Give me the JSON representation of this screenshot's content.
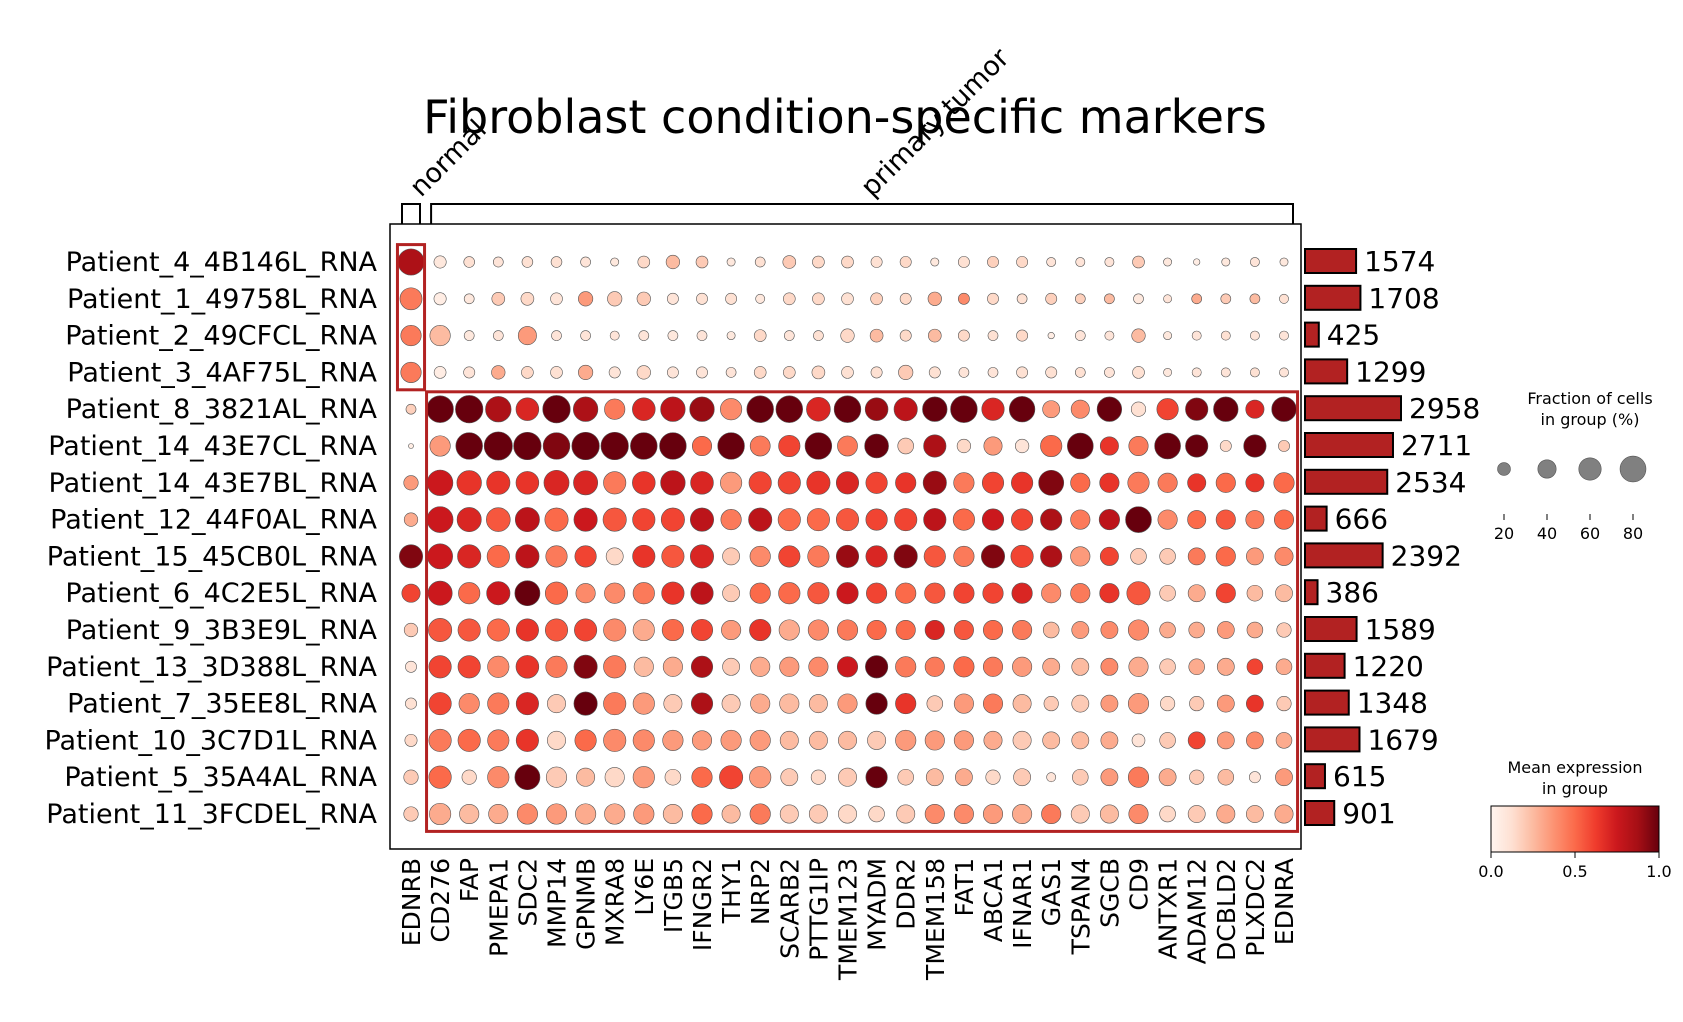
{
  "chart_data": {
    "type": "dotplot",
    "title": "Fibroblast condition-specific markers",
    "rows": [
      "Patient_4_4B146L_RNA",
      "Patient_1_49758L_RNA",
      "Patient_2_49CFCL_RNA",
      "Patient_3_4AF75L_RNA",
      "Patient_8_3821AL_RNA",
      "Patient_14_43E7CL_RNA",
      "Patient_14_43E7BL_RNA",
      "Patient_12_44F0AL_RNA",
      "Patient_15_45CB0L_RNA",
      "Patient_6_4C2E5L_RNA",
      "Patient_9_3B3E9L_RNA",
      "Patient_13_3D388L_RNA",
      "Patient_7_35EE8L_RNA",
      "Patient_10_3C7D1L_RNA",
      "Patient_5_35A4AL_RNA",
      "Patient_11_3FCDEL_RNA"
    ],
    "genes": [
      "EDNRB",
      "CD276",
      "FAP",
      "PMEPA1",
      "SDC2",
      "MMP14",
      "GPNMB",
      "MXRA8",
      "LY6E",
      "ITGB5",
      "IFNGR2",
      "THY1",
      "NRP2",
      "SCARB2",
      "PTTG1IP",
      "TMEM123",
      "MYADM",
      "DDR2",
      "TMEM158",
      "FAT1",
      "ABCA1",
      "IFNAR1",
      "GAS1",
      "TSPAN4",
      "SGCB",
      "CD9",
      "ANTXR1",
      "ADAM12",
      "DCBLD2",
      "PLXDC2",
      "EDNRA"
    ],
    "gene_groups": [
      {
        "label": "normal",
        "start": 0,
        "end": 0
      },
      {
        "label": "primary tumor",
        "start": 1,
        "end": 30
      }
    ],
    "highlight_boxes": [
      {
        "row_start": 0,
        "row_end": 3,
        "col_start": 0,
        "col_end": 0
      },
      {
        "row_start": 4,
        "row_end": 15,
        "col_start": 1,
        "col_end": 30
      }
    ],
    "fraction_pct": [
      [
        82,
        18,
        14,
        12,
        14,
        14,
        12,
        8,
        17,
        22,
        17,
        8,
        12,
        20,
        17,
        17,
        15,
        15,
        8,
        15,
        15,
        15,
        10,
        10,
        10,
        17,
        8,
        5,
        8,
        10,
        8
      ],
      [
        58,
        18,
        12,
        20,
        20,
        17,
        25,
        25,
        22,
        15,
        15,
        15,
        10,
        17,
        17,
        17,
        17,
        15,
        22,
        15,
        15,
        12,
        15,
        12,
        12,
        12,
        8,
        12,
        12,
        12,
        10
      ],
      [
        50,
        50,
        12,
        12,
        40,
        12,
        12,
        10,
        12,
        12,
        12,
        8,
        17,
        12,
        12,
        22,
        20,
        15,
        20,
        15,
        12,
        15,
        5,
        12,
        10,
        22,
        8,
        10,
        10,
        10,
        10
      ],
      [
        50,
        17,
        15,
        22,
        17,
        17,
        25,
        15,
        22,
        15,
        15,
        12,
        17,
        17,
        20,
        17,
        15,
        25,
        15,
        12,
        12,
        15,
        15,
        12,
        12,
        17,
        8,
        10,
        10,
        10,
        10
      ],
      [
        12,
        85,
        90,
        78,
        62,
        90,
        72,
        50,
        62,
        72,
        72,
        55,
        85,
        85,
        68,
        85,
        62,
        65,
        72,
        85,
        60,
        78,
        35,
        40,
        72,
        25,
        55,
        60,
        72,
        40,
        72
      ],
      [
        3,
        50,
        85,
        95,
        90,
        85,
        90,
        90,
        85,
        85,
        45,
        85,
        48,
        55,
        85,
        48,
        68,
        30,
        60,
        22,
        40,
        22,
        55,
        80,
        40,
        45,
        80,
        60,
        15,
        60,
        15
      ],
      [
        25,
        78,
        72,
        65,
        62,
        75,
        70,
        60,
        62,
        72,
        62,
        55,
        60,
        60,
        65,
        60,
        55,
        50,
        65,
        50,
        55,
        55,
        75,
        45,
        45,
        55,
        45,
        40,
        45,
        40,
        50
      ],
      [
        22,
        80,
        70,
        68,
        70,
        65,
        65,
        65,
        60,
        65,
        65,
        50,
        65,
        60,
        60,
        60,
        55,
        60,
        60,
        55,
        55,
        55,
        55,
        45,
        50,
        80,
        45,
        40,
        45,
        40,
        45
      ],
      [
        65,
        75,
        65,
        60,
        65,
        55,
        55,
        35,
        60,
        60,
        65,
        35,
        50,
        55,
        55,
        60,
        55,
        65,
        55,
        50,
        65,
        60,
        55,
        45,
        40,
        30,
        30,
        35,
        45,
        35,
        40
      ],
      [
        40,
        70,
        55,
        65,
        75,
        60,
        45,
        50,
        55,
        60,
        60,
        35,
        50,
        55,
        55,
        55,
        50,
        50,
        50,
        50,
        50,
        50,
        45,
        45,
        45,
        65,
        30,
        35,
        45,
        30,
        35
      ],
      [
        22,
        65,
        60,
        60,
        60,
        60,
        60,
        60,
        55,
        55,
        55,
        45,
        55,
        50,
        50,
        50,
        45,
        45,
        45,
        45,
        45,
        45,
        30,
        35,
        35,
        50,
        30,
        30,
        35,
        30,
        25
      ],
      [
        15,
        60,
        60,
        55,
        62,
        55,
        65,
        60,
        45,
        45,
        55,
        35,
        45,
        45,
        45,
        50,
        60,
        50,
        45,
        50,
        45,
        45,
        35,
        35,
        35,
        45,
        30,
        30,
        35,
        30,
        30
      ],
      [
        15,
        60,
        50,
        55,
        60,
        40,
        65,
        60,
        55,
        40,
        55,
        40,
        45,
        45,
        40,
        45,
        55,
        50,
        30,
        45,
        45,
        40,
        25,
        35,
        35,
        50,
        25,
        25,
        35,
        35,
        25
      ],
      [
        18,
        60,
        60,
        55,
        60,
        40,
        55,
        60,
        55,
        50,
        45,
        50,
        50,
        40,
        40,
        40,
        40,
        50,
        45,
        45,
        40,
        40,
        35,
        35,
        35,
        20,
        30,
        35,
        35,
        35,
        30
      ],
      [
        25,
        60,
        25,
        55,
        75,
        50,
        40,
        45,
        55,
        30,
        50,
        65,
        55,
        35,
        25,
        40,
        55,
        30,
        35,
        35,
        25,
        35,
        10,
        30,
        35,
        50,
        35,
        25,
        30,
        15,
        35
      ],
      [
        25,
        55,
        45,
        45,
        50,
        50,
        50,
        50,
        50,
        45,
        50,
        40,
        50,
        40,
        40,
        40,
        30,
        40,
        45,
        45,
        45,
        45,
        45,
        40,
        40,
        45,
        30,
        35,
        40,
        35,
        40
      ]
    ],
    "mean_expression": [
      [
        0.85,
        0.08,
        0.12,
        0.1,
        0.12,
        0.12,
        0.1,
        0.08,
        0.15,
        0.25,
        0.2,
        0.08,
        0.12,
        0.2,
        0.15,
        0.15,
        0.12,
        0.15,
        0.08,
        0.12,
        0.18,
        0.15,
        0.1,
        0.1,
        0.1,
        0.2,
        0.08,
        0.05,
        0.08,
        0.1,
        0.08
      ],
      [
        0.45,
        0.05,
        0.08,
        0.2,
        0.15,
        0.1,
        0.35,
        0.2,
        0.2,
        0.1,
        0.12,
        0.12,
        0.08,
        0.15,
        0.15,
        0.12,
        0.18,
        0.15,
        0.3,
        0.4,
        0.15,
        0.12,
        0.18,
        0.18,
        0.25,
        0.08,
        0.1,
        0.3,
        0.2,
        0.25,
        0.12
      ],
      [
        0.45,
        0.25,
        0.08,
        0.1,
        0.35,
        0.1,
        0.1,
        0.1,
        0.1,
        0.08,
        0.1,
        0.08,
        0.15,
        0.1,
        0.12,
        0.15,
        0.25,
        0.15,
        0.25,
        0.15,
        0.12,
        0.15,
        0.05,
        0.1,
        0.1,
        0.25,
        0.08,
        0.1,
        0.12,
        0.1,
        0.1
      ],
      [
        0.45,
        0.05,
        0.1,
        0.3,
        0.15,
        0.12,
        0.3,
        0.1,
        0.15,
        0.1,
        0.1,
        0.1,
        0.15,
        0.15,
        0.15,
        0.12,
        0.12,
        0.2,
        0.12,
        0.1,
        0.1,
        0.12,
        0.12,
        0.12,
        0.1,
        0.12,
        0.08,
        0.1,
        0.1,
        0.12,
        0.1
      ],
      [
        0.18,
        1.0,
        1.0,
        0.85,
        0.7,
        1.0,
        0.85,
        0.45,
        0.7,
        0.8,
        0.9,
        0.4,
        1.0,
        1.0,
        0.7,
        1.0,
        0.9,
        0.8,
        1.0,
        1.0,
        0.7,
        1.0,
        0.35,
        0.4,
        1.0,
        0.12,
        0.6,
        0.95,
        1.0,
        0.7,
        1.0
      ],
      [
        0.05,
        0.35,
        1.0,
        1.0,
        1.0,
        0.95,
        1.0,
        1.0,
        1.0,
        1.0,
        0.5,
        1.0,
        0.45,
        0.6,
        1.0,
        0.45,
        1.0,
        0.2,
        0.85,
        0.15,
        0.35,
        0.1,
        0.5,
        1.0,
        0.65,
        0.45,
        1.0,
        1.0,
        0.15,
        1.0,
        0.2
      ],
      [
        0.35,
        0.75,
        0.65,
        0.65,
        0.65,
        0.7,
        0.7,
        0.45,
        0.65,
        0.8,
        0.7,
        0.35,
        0.6,
        0.6,
        0.65,
        0.7,
        0.6,
        0.65,
        0.9,
        0.45,
        0.6,
        0.65,
        0.95,
        0.5,
        0.65,
        0.45,
        0.45,
        0.65,
        0.5,
        0.65,
        0.5
      ],
      [
        0.3,
        0.75,
        0.7,
        0.55,
        0.8,
        0.5,
        0.75,
        0.55,
        0.6,
        0.6,
        0.8,
        0.45,
        0.8,
        0.5,
        0.5,
        0.55,
        0.6,
        0.6,
        0.8,
        0.5,
        0.75,
        0.6,
        0.85,
        0.45,
        0.8,
        1.0,
        0.4,
        0.5,
        0.55,
        0.45,
        0.5
      ],
      [
        0.95,
        0.75,
        0.7,
        0.5,
        0.8,
        0.45,
        0.6,
        0.15,
        0.65,
        0.55,
        0.7,
        0.2,
        0.4,
        0.6,
        0.45,
        0.9,
        0.7,
        0.95,
        0.55,
        0.45,
        0.95,
        0.6,
        0.85,
        0.35,
        0.6,
        0.2,
        0.2,
        0.45,
        0.5,
        0.35,
        0.4
      ],
      [
        0.6,
        0.75,
        0.5,
        0.75,
        1.0,
        0.5,
        0.4,
        0.4,
        0.45,
        0.65,
        0.8,
        0.2,
        0.5,
        0.5,
        0.55,
        0.75,
        0.6,
        0.5,
        0.55,
        0.6,
        0.6,
        0.7,
        0.4,
        0.45,
        0.65,
        0.55,
        0.2,
        0.3,
        0.6,
        0.25,
        0.25
      ],
      [
        0.2,
        0.55,
        0.55,
        0.5,
        0.65,
        0.55,
        0.6,
        0.4,
        0.3,
        0.5,
        0.6,
        0.35,
        0.65,
        0.3,
        0.4,
        0.45,
        0.5,
        0.5,
        0.7,
        0.55,
        0.5,
        0.45,
        0.25,
        0.35,
        0.4,
        0.4,
        0.3,
        0.3,
        0.35,
        0.3,
        0.2
      ],
      [
        0.1,
        0.6,
        0.6,
        0.4,
        0.65,
        0.45,
        0.95,
        0.45,
        0.25,
        0.3,
        0.85,
        0.2,
        0.3,
        0.35,
        0.4,
        0.75,
        1.0,
        0.45,
        0.45,
        0.5,
        0.45,
        0.35,
        0.3,
        0.25,
        0.4,
        0.3,
        0.2,
        0.3,
        0.3,
        0.6,
        0.3
      ],
      [
        0.12,
        0.6,
        0.4,
        0.45,
        0.7,
        0.2,
        1.0,
        0.45,
        0.35,
        0.2,
        0.85,
        0.2,
        0.3,
        0.25,
        0.25,
        0.35,
        1.0,
        0.65,
        0.2,
        0.35,
        0.45,
        0.25,
        0.2,
        0.2,
        0.35,
        0.35,
        0.15,
        0.2,
        0.35,
        0.65,
        0.2
      ],
      [
        0.15,
        0.45,
        0.5,
        0.45,
        0.65,
        0.15,
        0.5,
        0.4,
        0.4,
        0.35,
        0.35,
        0.35,
        0.35,
        0.25,
        0.25,
        0.25,
        0.2,
        0.35,
        0.35,
        0.35,
        0.3,
        0.2,
        0.25,
        0.25,
        0.3,
        0.1,
        0.2,
        0.6,
        0.35,
        0.4,
        0.3
      ],
      [
        0.2,
        0.5,
        0.15,
        0.4,
        1.0,
        0.2,
        0.25,
        0.15,
        0.35,
        0.15,
        0.5,
        0.6,
        0.35,
        0.2,
        0.15,
        0.2,
        1.0,
        0.2,
        0.25,
        0.3,
        0.15,
        0.2,
        0.1,
        0.2,
        0.35,
        0.45,
        0.3,
        0.2,
        0.25,
        0.1,
        0.35
      ],
      [
        0.2,
        0.3,
        0.25,
        0.3,
        0.4,
        0.35,
        0.3,
        0.3,
        0.35,
        0.25,
        0.5,
        0.25,
        0.45,
        0.2,
        0.2,
        0.15,
        0.15,
        0.2,
        0.4,
        0.4,
        0.35,
        0.3,
        0.45,
        0.2,
        0.25,
        0.4,
        0.15,
        0.2,
        0.3,
        0.25,
        0.3
      ]
    ],
    "cell_counts": [
      1574,
      1708,
      425,
      1299,
      2958,
      2711,
      2534,
      666,
      2392,
      386,
      1589,
      1220,
      1348,
      1679,
      615,
      901
    ],
    "size_legend": {
      "title_line1": "Fraction of cells",
      "title_line2": "in group (%)",
      "ticks": [
        20,
        40,
        60,
        80
      ]
    },
    "color_legend": {
      "title_line1": "Mean expression",
      "title_line2": "in group",
      "ticks": [
        "0.0",
        "0.5",
        "1.0"
      ],
      "range": [
        0,
        1
      ],
      "colormap": "Reds"
    },
    "colors": {
      "highlight": "#b22222",
      "bar_fill": "#b22222",
      "bar_edge": "#000000",
      "dot_edge": "#555555"
    }
  }
}
